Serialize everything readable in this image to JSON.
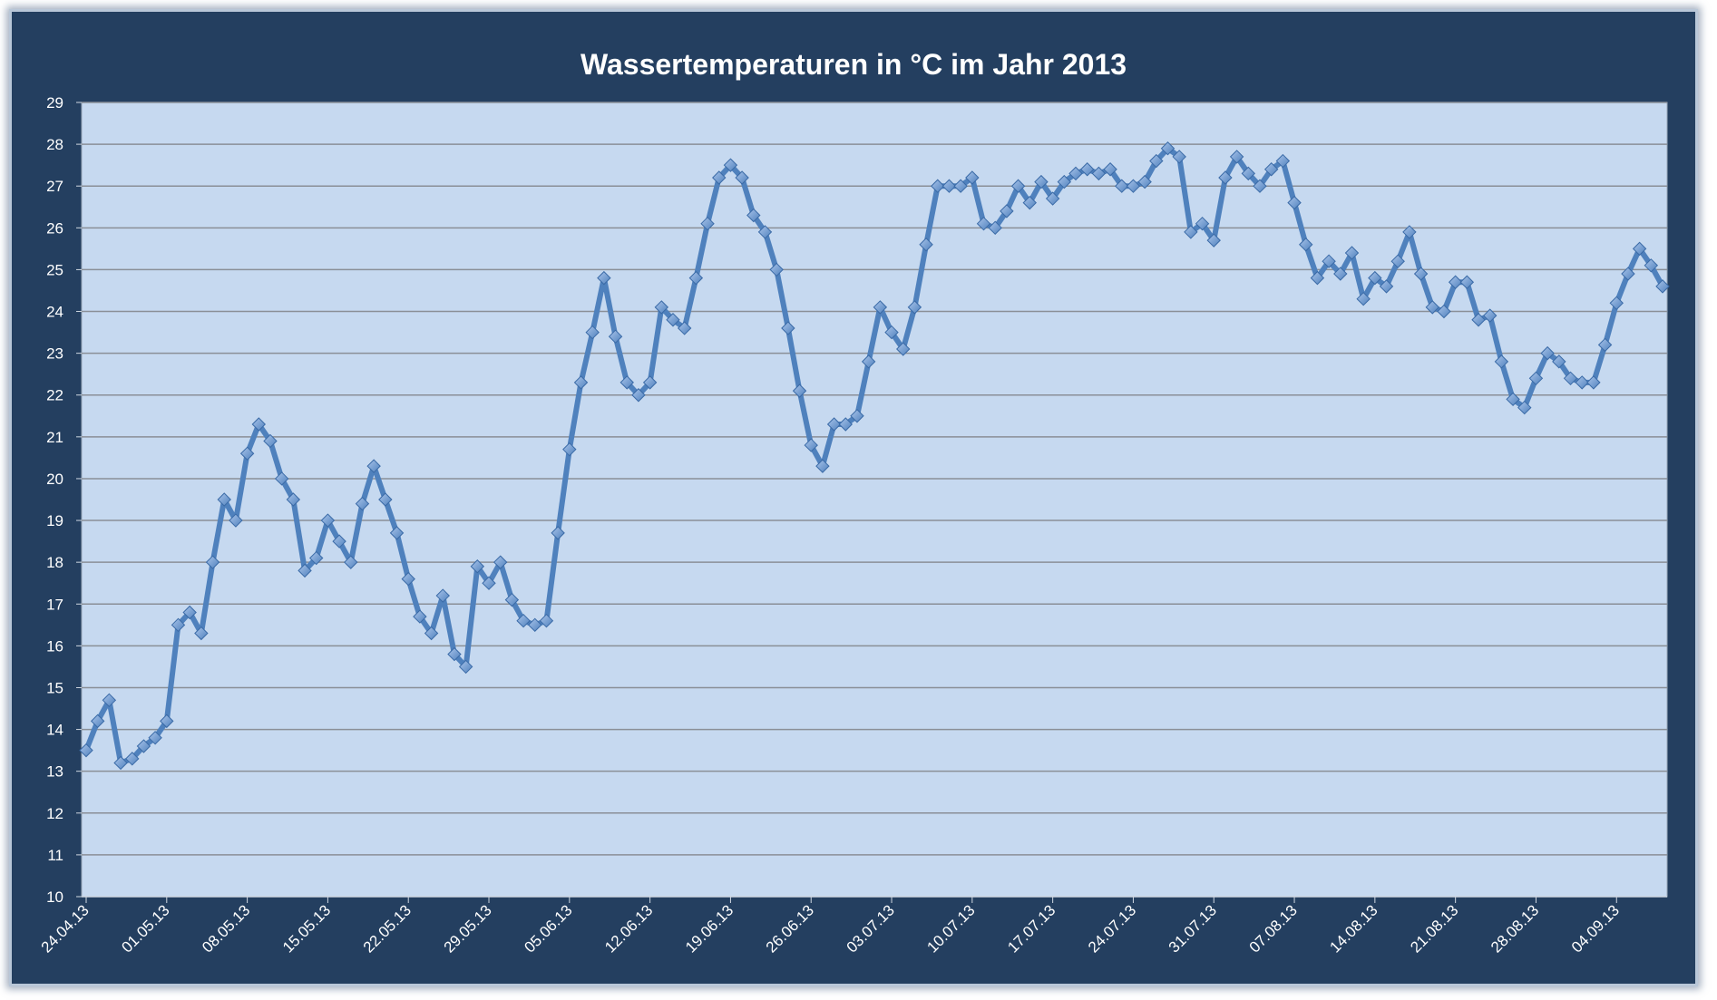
{
  "chart_data": {
    "type": "line",
    "title": "Wassertemperaturen in °C  im Jahr 2013",
    "xlabel": "",
    "ylabel": "",
    "ylim": [
      10,
      29
    ],
    "yticks": [
      10,
      11,
      12,
      13,
      14,
      15,
      16,
      17,
      18,
      19,
      20,
      21,
      22,
      23,
      24,
      25,
      26,
      27,
      28,
      29
    ],
    "x_tick_labels": [
      "24.04.13",
      "01.05.13",
      "08.05.13",
      "15.05.13",
      "22.05.13",
      "29.05.13",
      "05.06.13",
      "12.06.13",
      "19.06.13",
      "26.06.13",
      "03.07.13",
      "10.07.13",
      "17.07.13",
      "24.07.13",
      "31.07.13",
      "07.08.13",
      "14.08.13",
      "21.08.13",
      "28.08.13",
      "04.09.13"
    ],
    "x_start": "24.04.13",
    "x_end": "11.09.13",
    "grid": true,
    "colors": {
      "frame": "#243f60",
      "plot_bg": "#c6d9f0",
      "line": "#4f81bd",
      "grid": "#8a8f97",
      "text": "#ffffff"
    },
    "series": [
      {
        "name": "",
        "values": [
          13.5,
          14.2,
          14.7,
          13.2,
          13.3,
          13.6,
          13.8,
          14.2,
          16.5,
          16.8,
          16.3,
          18.0,
          19.5,
          19.0,
          20.6,
          21.3,
          20.9,
          20.0,
          19.5,
          17.8,
          18.1,
          19.0,
          18.5,
          18.0,
          19.4,
          20.3,
          19.5,
          18.7,
          17.6,
          16.7,
          16.3,
          17.2,
          15.8,
          15.5,
          17.9,
          17.5,
          18.0,
          17.1,
          16.6,
          16.5,
          16.6,
          18.7,
          20.7,
          22.3,
          23.5,
          24.8,
          23.4,
          22.3,
          22.0,
          22.3,
          24.1,
          23.8,
          23.6,
          24.8,
          26.1,
          27.2,
          27.5,
          27.2,
          26.3,
          25.9,
          25.0,
          23.6,
          22.1,
          20.8,
          20.3,
          21.3,
          21.3,
          21.5,
          22.8,
          24.1,
          23.5,
          23.1,
          24.1,
          25.6,
          27.0,
          27.0,
          27.0,
          27.2,
          26.1,
          26.0,
          26.4,
          27.0,
          26.6,
          27.1,
          26.7,
          27.1,
          27.3,
          27.4,
          27.3,
          27.4,
          27.0,
          27.0,
          27.1,
          27.6,
          27.9,
          27.7,
          25.9,
          26.1,
          25.7,
          27.2,
          27.7,
          27.3,
          27.0,
          27.4,
          27.6,
          26.6,
          25.6,
          24.8,
          25.2,
          24.9,
          25.4,
          24.3,
          24.8,
          24.6,
          25.2,
          25.9,
          24.9,
          24.1,
          24.0,
          24.7,
          24.7,
          23.8,
          23.9,
          22.8,
          21.9,
          21.7,
          22.4,
          23.0,
          22.8,
          22.4,
          22.3,
          22.3,
          23.2,
          24.2,
          24.9,
          25.5,
          25.1,
          24.6
        ]
      }
    ]
  }
}
